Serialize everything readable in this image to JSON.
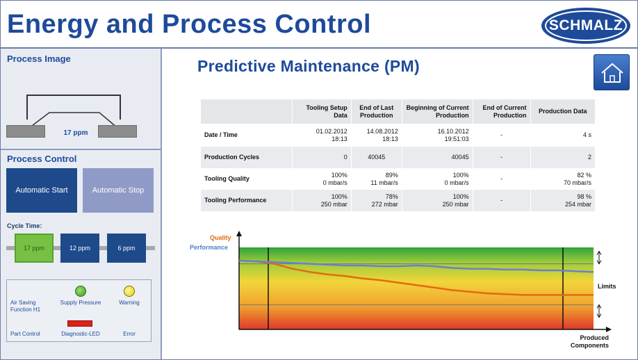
{
  "header": {
    "title": "Energy and Process Control",
    "logo_text": "SCHMALZ",
    "brand_color": "#1e4a9a"
  },
  "sidebar": {
    "process_image": {
      "title": "Process Image",
      "rate": "17 ppm"
    },
    "process_control": {
      "title": "Process Control",
      "start_label": "Automatic Start",
      "stop_label": "Automatic Stop",
      "cycle_label": "Cycle Time:",
      "cycles": [
        "17 ppm",
        "12 ppm",
        "6 ppm"
      ],
      "selected_cycle": "17 ppm"
    },
    "status": {
      "air_saving": "Air Saving Function H1",
      "supply_pressure": "Supply Pressure",
      "warning": "Warning",
      "part_control": "Part Control",
      "diagnostic_led": "Diagnostic-LED",
      "error": "Error",
      "supply_pressure_color": "#3c9a1f",
      "warning_color": "#e2cf10",
      "diagnostic_color": "#e02018"
    }
  },
  "main": {
    "title": "Predictive Maintenance (PM)",
    "home_icon": "home-icon",
    "table": {
      "headers": [
        "",
        "Tooling Setup Data",
        "End of Last Production",
        "Beginning of Current Production",
        "End of Current Production",
        "Production Data"
      ],
      "rows": [
        {
          "label": "Date / Time",
          "cells": [
            "01.02.2012\n18:13",
            "14.08.2012\n18:13",
            "16.10.2012\n19:51:03",
            "-",
            "4 s"
          ]
        },
        {
          "label": "Production Cycles",
          "cells": [
            "0",
            "40045",
            "40045",
            "-",
            "2"
          ]
        },
        {
          "label": "Tooling Quality",
          "cells": [
            "100%\n0 mbar/s",
            "89%\n11 mbar/s",
            "100%\n0 mbar/s",
            "-",
            "82 %\n70 mbar/s"
          ]
        },
        {
          "label": "Tooling Performance",
          "cells": [
            "100%\n250 mbar",
            "78%\n272 mbar",
            "100%\n250 mbar",
            "-",
            "98 %\n254 mbar"
          ]
        }
      ]
    },
    "chart": {
      "legend_quality": "Quality",
      "legend_performance": "Performance",
      "limits_label": "Limits",
      "x_label": "Produced Components",
      "quality_color": "#e36a10",
      "performance_color": "#6a7fd0"
    }
  },
  "chart_data": {
    "type": "line",
    "title": "",
    "xlabel": "Produced Components",
    "ylabel": "",
    "x": [
      0,
      5,
      10,
      15,
      20,
      25,
      30,
      35,
      40,
      45,
      50,
      55,
      60,
      65,
      70,
      75,
      80,
      85,
      90,
      95,
      100
    ],
    "series": [
      {
        "name": "Quality",
        "values": [
          84,
          83,
          80,
          74,
          70,
          67,
          65,
          62,
          60,
          57,
          54,
          51,
          48,
          46,
          44,
          43,
          42,
          42,
          42,
          42,
          42
        ]
      },
      {
        "name": "Performance",
        "values": [
          84,
          83,
          82,
          81,
          80,
          79,
          78,
          78,
          77,
          77,
          78,
          77,
          75,
          74,
          74,
          73,
          73,
          72,
          72,
          71,
          70
        ]
      }
    ],
    "ylim": [
      0,
      100
    ],
    "limits": [
      80,
      30
    ],
    "grid": false,
    "legend": "top-left"
  }
}
